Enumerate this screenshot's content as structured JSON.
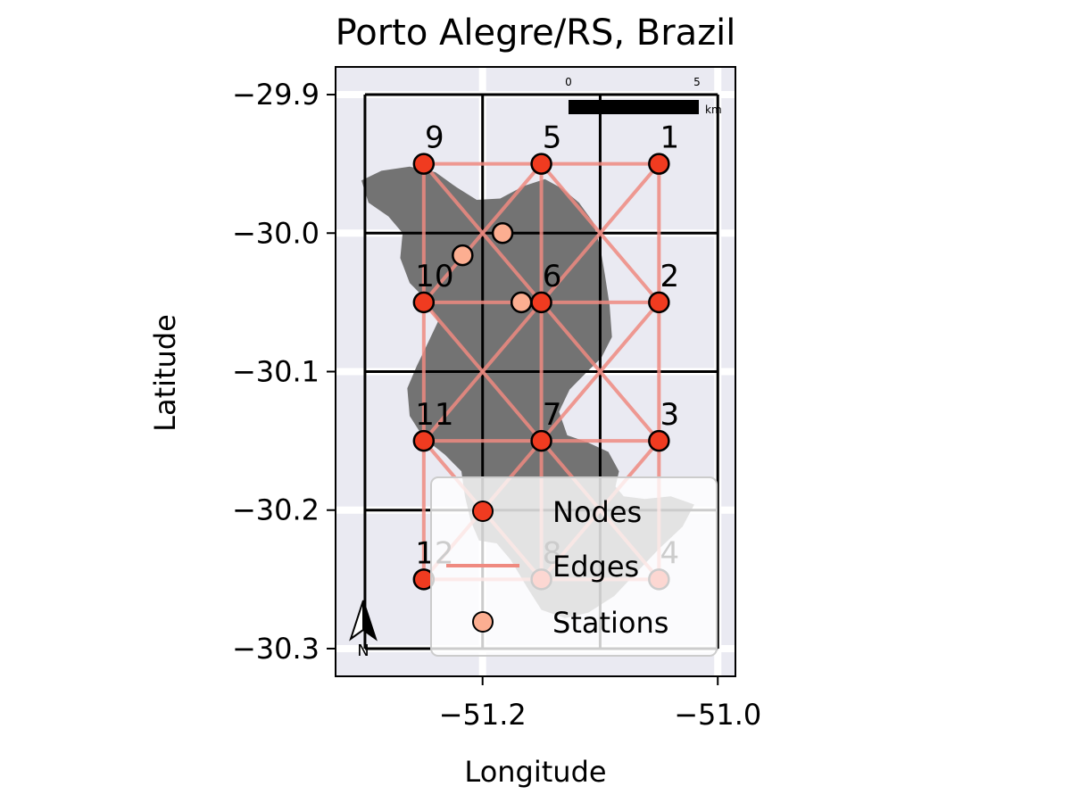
{
  "title": "Porto Alegre/RS, Brazil",
  "x_axis": {
    "label": "Longitude",
    "lim": [
      -51.325,
      -50.985
    ],
    "ticks": [
      -51.2,
      -51.0
    ],
    "tick_labels": [
      "−51.2",
      "−51.0"
    ]
  },
  "y_axis": {
    "label": "Latitude",
    "lim": [
      -30.32,
      -29.88
    ],
    "ticks": [
      -29.9,
      -30.0,
      -30.1,
      -30.2,
      -30.3
    ],
    "tick_labels": [
      "−29.9",
      "−30.0",
      "−30.1",
      "−30.2",
      "−30.3"
    ]
  },
  "grid_cells": {
    "lon_lines": [
      -51.3,
      -51.2,
      -51.1,
      -51.0
    ],
    "lat_lines": [
      -29.9,
      -30.0,
      -30.1,
      -30.2,
      -30.3
    ]
  },
  "nodes": [
    {
      "id": "1",
      "lon": -51.05,
      "lat": -29.95
    },
    {
      "id": "2",
      "lon": -51.05,
      "lat": -30.05
    },
    {
      "id": "3",
      "lon": -51.05,
      "lat": -30.15
    },
    {
      "id": "4",
      "lon": -51.05,
      "lat": -30.25
    },
    {
      "id": "5",
      "lon": -51.15,
      "lat": -29.95
    },
    {
      "id": "6",
      "lon": -51.15,
      "lat": -30.05
    },
    {
      "id": "7",
      "lon": -51.15,
      "lat": -30.15
    },
    {
      "id": "8",
      "lon": -51.15,
      "lat": -30.25
    },
    {
      "id": "9",
      "lon": -51.25,
      "lat": -29.95
    },
    {
      "id": "10",
      "lon": -51.25,
      "lat": -30.05
    },
    {
      "id": "11",
      "lon": -51.25,
      "lat": -30.15
    },
    {
      "id": "12",
      "lon": -51.25,
      "lat": -30.25
    }
  ],
  "edges": [
    [
      "9",
      "5"
    ],
    [
      "5",
      "1"
    ],
    [
      "10",
      "6"
    ],
    [
      "6",
      "2"
    ],
    [
      "11",
      "7"
    ],
    [
      "7",
      "3"
    ],
    [
      "12",
      "8"
    ],
    [
      "8",
      "4"
    ],
    [
      "9",
      "10"
    ],
    [
      "10",
      "11"
    ],
    [
      "11",
      "12"
    ],
    [
      "5",
      "6"
    ],
    [
      "6",
      "7"
    ],
    [
      "7",
      "8"
    ],
    [
      "1",
      "2"
    ],
    [
      "2",
      "3"
    ],
    [
      "3",
      "4"
    ],
    [
      "9",
      "6"
    ],
    [
      "10",
      "5"
    ],
    [
      "5",
      "2"
    ],
    [
      "6",
      "1"
    ],
    [
      "10",
      "7"
    ],
    [
      "11",
      "6"
    ],
    [
      "6",
      "3"
    ],
    [
      "7",
      "2"
    ],
    [
      "11",
      "8"
    ],
    [
      "12",
      "7"
    ],
    [
      "7",
      "4"
    ],
    [
      "8",
      "3"
    ]
  ],
  "stations": [
    {
      "lon": -51.183,
      "lat": -30.0
    },
    {
      "lon": -51.217,
      "lat": -30.016
    },
    {
      "lon": -51.167,
      "lat": -30.05
    }
  ],
  "landmass": [
    [
      -51.303,
      -29.962
    ],
    [
      -51.286,
      -29.955
    ],
    [
      -51.262,
      -29.952
    ],
    [
      -51.24,
      -29.956
    ],
    [
      -51.222,
      -29.967
    ],
    [
      -51.205,
      -29.976
    ],
    [
      -51.185,
      -29.975
    ],
    [
      -51.165,
      -29.966
    ],
    [
      -51.147,
      -29.961
    ],
    [
      -51.132,
      -29.968
    ],
    [
      -51.118,
      -29.978
    ],
    [
      -51.106,
      -29.992
    ],
    [
      -51.1,
      -30.01
    ],
    [
      -51.096,
      -30.03
    ],
    [
      -51.092,
      -30.052
    ],
    [
      -51.09,
      -30.075
    ],
    [
      -51.099,
      -30.09
    ],
    [
      -51.111,
      -30.1
    ],
    [
      -51.126,
      -30.113
    ],
    [
      -51.135,
      -30.129
    ],
    [
      -51.128,
      -30.146
    ],
    [
      -51.111,
      -30.151
    ],
    [
      -51.093,
      -30.158
    ],
    [
      -51.084,
      -30.172
    ],
    [
      -51.087,
      -30.183
    ],
    [
      -51.08,
      -30.19
    ],
    [
      -51.062,
      -30.192
    ],
    [
      -51.04,
      -30.19
    ],
    [
      -51.02,
      -30.196
    ],
    [
      -51.03,
      -30.212
    ],
    [
      -51.05,
      -30.228
    ],
    [
      -51.068,
      -30.244
    ],
    [
      -51.088,
      -30.262
    ],
    [
      -51.11,
      -30.274
    ],
    [
      -51.13,
      -30.278
    ],
    [
      -51.15,
      -30.272
    ],
    [
      -51.162,
      -30.256
    ],
    [
      -51.176,
      -30.236
    ],
    [
      -51.188,
      -30.224
    ],
    [
      -51.203,
      -30.222
    ],
    [
      -51.21,
      -30.208
    ],
    [
      -51.215,
      -30.19
    ],
    [
      -51.218,
      -30.172
    ],
    [
      -51.232,
      -30.16
    ],
    [
      -51.25,
      -30.148
    ],
    [
      -51.262,
      -30.132
    ],
    [
      -51.264,
      -30.112
    ],
    [
      -51.256,
      -30.096
    ],
    [
      -51.248,
      -30.082
    ],
    [
      -51.238,
      -30.064
    ],
    [
      -51.248,
      -30.048
    ],
    [
      -51.262,
      -30.036
    ],
    [
      -51.27,
      -30.018
    ],
    [
      -51.268,
      -30.0
    ],
    [
      -51.28,
      -29.988
    ],
    [
      -51.297,
      -29.978
    ]
  ],
  "legend": {
    "nodes_label": "Nodes",
    "edges_label": "Edges",
    "stations_label": "Stations"
  },
  "scale_bar": {
    "min_label": "0",
    "max_label": "5",
    "unit": "km"
  },
  "north_arrow": {
    "label": "N"
  },
  "colors": {
    "node_fill": "#f03b20",
    "station_fill": "#fcae91",
    "edge": "#ef8a80",
    "land": "#737373",
    "grid_bg": "#eaeaf2"
  }
}
